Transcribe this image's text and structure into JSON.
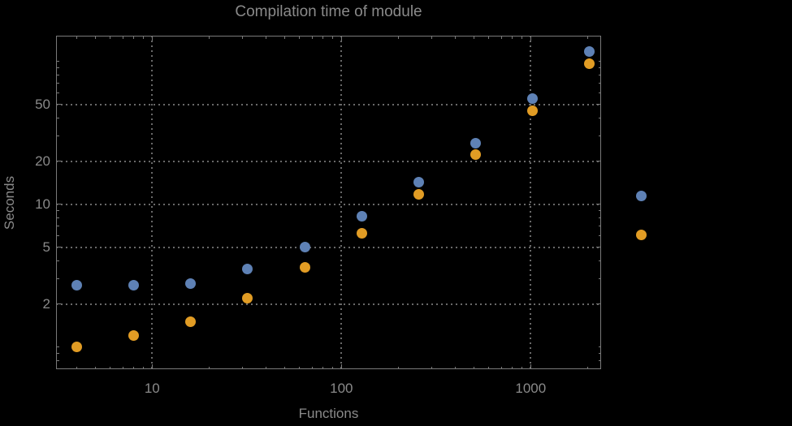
{
  "title": "Compilation time of module",
  "xlabel": "Functions",
  "ylabel": "Seconds",
  "colors": {
    "background": "#000000",
    "text": "#8a8a8a",
    "frame": "#7a7a7a",
    "grid": "#696969",
    "series1": "#5E81B5",
    "series2": "#E19C24"
  },
  "axes": {
    "x": {
      "scale": "log",
      "major_tick_labels": [
        "10",
        "100",
        "1000"
      ],
      "major_ticks": [
        10,
        100,
        1000
      ],
      "minor_ticks": [
        4,
        5,
        6,
        7,
        8,
        9,
        20,
        30,
        40,
        50,
        60,
        70,
        80,
        90,
        200,
        300,
        400,
        500,
        600,
        700,
        800,
        900,
        2000
      ]
    },
    "y": {
      "scale": "log",
      "major_tick_labels": [
        "2",
        "5",
        "10",
        "20",
        "50"
      ],
      "major_ticks": [
        2,
        5,
        10,
        20,
        50
      ],
      "minor_ticks": [
        0.8,
        0.9,
        1,
        3,
        4,
        6,
        7,
        8,
        9,
        30,
        40,
        60,
        70,
        80,
        90,
        100,
        150
      ]
    }
  },
  "legend": {
    "markers": [
      {
        "name": "series-1-marker",
        "color": "#5E81B5"
      },
      {
        "name": "series-2-marker",
        "color": "#E19C24"
      }
    ]
  },
  "chart_data": {
    "type": "scatter",
    "title": "Compilation time of module",
    "xlabel": "Functions",
    "ylabel": "Seconds",
    "xscale": "log",
    "yscale": "log",
    "xlim": [
      3.1,
      2350
    ],
    "ylim": [
      0.7,
      151
    ],
    "grid": "dotted at major ticks (x: 10,100,1000; y: 2,5,10,20,50)",
    "legend_position": "right of frame, marker dots only (no visible text)",
    "x": [
      4,
      8,
      16,
      32,
      64,
      128,
      256,
      512,
      1024,
      2048
    ],
    "series": [
      {
        "name": "series-1-blue",
        "color": "#5E81B5",
        "values": [
          2.7,
          2.7,
          2.8,
          3.5,
          5.0,
          8.2,
          14.2,
          26.8,
          54.8,
          117
        ]
      },
      {
        "name": "series-2-orange",
        "color": "#E19C24",
        "values": [
          1.0,
          1.2,
          1.5,
          2.2,
          3.6,
          6.3,
          11.7,
          22.2,
          45.4,
          96
        ]
      }
    ]
  }
}
